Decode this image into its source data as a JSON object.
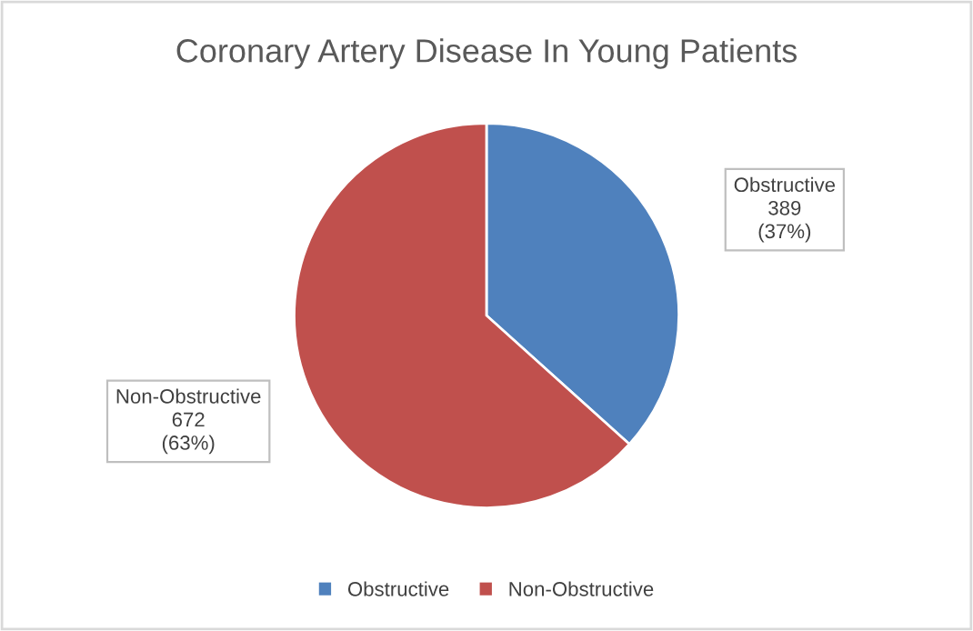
{
  "chart_data": {
    "type": "pie",
    "title": "Coronary Artery Disease In Young Patients",
    "categories": [
      "Obstructive",
      "Non-Obstructive"
    ],
    "values": [
      389,
      672
    ],
    "colors": [
      "#4f81bd",
      "#c0504d"
    ],
    "value_labels": [
      "389\n(37%)",
      "672\n(63%)"
    ],
    "legend": "bottom"
  }
}
